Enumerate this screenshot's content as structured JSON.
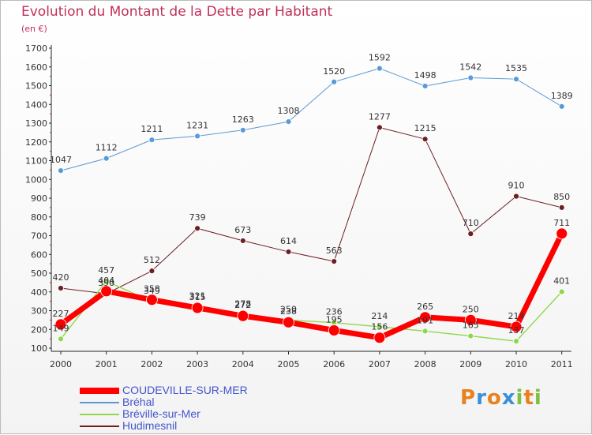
{
  "header": {
    "title": "Evolution du Montant de la Dette par Habitant",
    "unit": "(en €)"
  },
  "logo": {
    "letters": [
      "P",
      "r",
      "o",
      "x",
      "i",
      "t",
      "i"
    ],
    "colors": [
      "#e8821e",
      "#3a8fd8",
      "#e8821e",
      "#3a8fd8",
      "#7ac143",
      "#e8821e",
      "#7ac143"
    ]
  },
  "chart_data": {
    "type": "line",
    "title": "Evolution du Montant de la Dette par Habitant",
    "subtitle": "(en €)",
    "x": [
      "2000",
      "2001",
      "2002",
      "2003",
      "2004",
      "2005",
      "2006",
      "2007",
      "2008",
      "2009",
      "2010",
      "2011"
    ],
    "ylim": [
      100,
      1700
    ],
    "yticks": [
      100,
      200,
      300,
      400,
      500,
      600,
      700,
      800,
      900,
      1000,
      1100,
      1200,
      1300,
      1400,
      1500,
      1600,
      1700
    ],
    "grid": false,
    "legend_position": "bottom-left",
    "series": [
      {
        "name": "Bréhal",
        "color": "#5b9bd5",
        "width": 1,
        "radius": 3.5,
        "values": [
          1047,
          1112,
          1211,
          1231,
          1263,
          1308,
          1520,
          1592,
          1498,
          1542,
          1535,
          1389
        ],
        "labels": [
          "1047",
          "1112",
          "1211",
          "1231",
          "1263",
          "1308",
          "1520",
          "1592",
          "1498",
          "1542",
          "1535",
          "1389"
        ]
      },
      {
        "name": "Hudimesnil",
        "color": "#6e1f22",
        "width": 1,
        "radius": 3.5,
        "values": [
          420,
          390,
          512,
          739,
          673,
          614,
          563,
          1277,
          1215,
          710,
          910,
          850
        ],
        "labels": [
          "420",
          "390",
          "512",
          "739",
          "673",
          "614",
          "563",
          "1277",
          "1215",
          "710",
          "910",
          "850"
        ]
      },
      {
        "name": "Bréville-sur-Mer",
        "color": "#8ed84a",
        "width": 1.4,
        "radius": 3.5,
        "values": [
          149,
          457,
          349,
          321,
          278,
          250,
          236,
          214,
          191,
          165,
          137,
          401
        ],
        "labels": [
          "149",
          "457",
          "349",
          "321",
          "278",
          "250",
          "236",
          "214",
          "191",
          "165",
          "137",
          "401"
        ]
      },
      {
        "name": "COUDEVILLE-SUR-MER",
        "color": "#ff0000",
        "width": 7,
        "radius": 7,
        "values": [
          227,
          404,
          358,
          315,
          272,
          238,
          195,
          156,
          265,
          250,
          214,
          711
        ],
        "labels": [
          "227",
          "404",
          "358",
          "315",
          "272",
          "238",
          "195",
          "156",
          "265",
          "250",
          "214",
          "711"
        ]
      }
    ],
    "legend": [
      {
        "name": "COUDEVILLE-SUR-MER",
        "color": "#ff0000",
        "thickness": 8
      },
      {
        "name": "Bréhal",
        "color": "#5b9bd5",
        "thickness": 2
      },
      {
        "name": "Bréville-sur-Mer",
        "color": "#8ed84a",
        "thickness": 2
      },
      {
        "name": "Hudimesnil",
        "color": "#6e1f22",
        "thickness": 2
      }
    ]
  }
}
